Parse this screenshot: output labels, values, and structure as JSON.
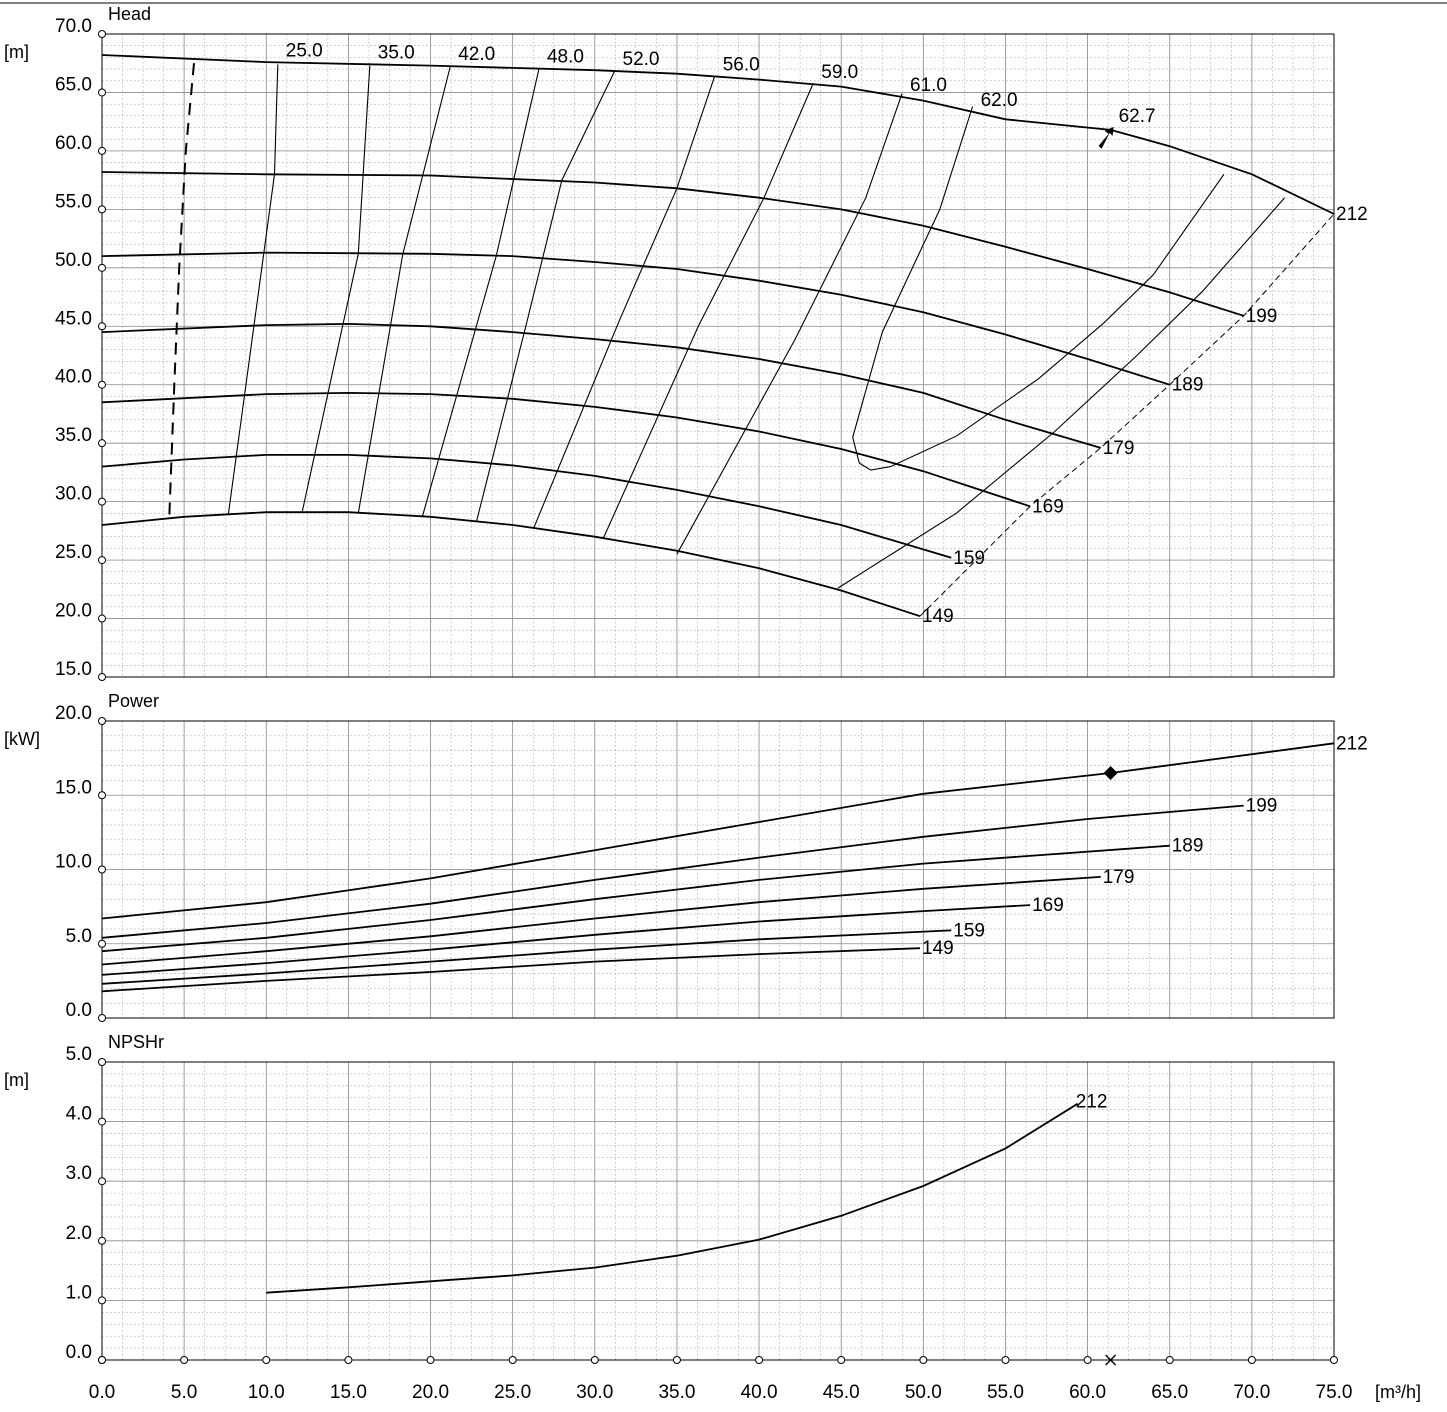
{
  "chart_data": [
    {
      "type": "line",
      "title": "Head",
      "ylabel": "[m]",
      "xlabel": "[m³/h]",
      "xlim": [
        0,
        75
      ],
      "ylim": [
        15,
        70
      ],
      "ytick_labels": [
        "15.0",
        "20.0",
        "25.0",
        "30.0",
        "35.0",
        "40.0",
        "45.0",
        "50.0",
        "55.0",
        "60.0",
        "65.0",
        "70.0"
      ],
      "grid": true,
      "series": [
        {
          "name": "212",
          "points": [
            [
              0,
              68.2
            ],
            [
              10,
              67.6
            ],
            [
              20,
              67.3
            ],
            [
              30,
              66.9
            ],
            [
              35,
              66.6
            ],
            [
              40,
              66.1
            ],
            [
              45,
              65.5
            ],
            [
              50,
              64.3
            ],
            [
              55,
              62.7
            ],
            [
              61.4,
              61.8
            ],
            [
              65,
              60.4
            ],
            [
              70,
              58.0
            ],
            [
              75,
              54.6
            ]
          ]
        },
        {
          "name": "199",
          "points": [
            [
              0,
              58.2
            ],
            [
              10,
              58.0
            ],
            [
              20,
              57.9
            ],
            [
              30,
              57.3
            ],
            [
              35,
              56.8
            ],
            [
              40,
              56.0
            ],
            [
              45,
              55.0
            ],
            [
              50,
              53.6
            ],
            [
              55,
              51.8
            ],
            [
              60,
              49.9
            ],
            [
              65,
              47.9
            ],
            [
              69.5,
              45.9
            ]
          ]
        },
        {
          "name": "189",
          "points": [
            [
              0,
              51.0
            ],
            [
              10,
              51.3
            ],
            [
              20,
              51.2
            ],
            [
              25,
              51.0
            ],
            [
              30,
              50.5
            ],
            [
              35,
              49.9
            ],
            [
              40,
              48.9
            ],
            [
              45,
              47.7
            ],
            [
              50,
              46.2
            ],
            [
              55,
              44.3
            ],
            [
              60,
              42.2
            ],
            [
              65,
              40.0
            ]
          ]
        },
        {
          "name": "179",
          "points": [
            [
              0,
              44.5
            ],
            [
              10,
              45.1
            ],
            [
              15,
              45.2
            ],
            [
              20,
              45.0
            ],
            [
              25,
              44.5
            ],
            [
              30,
              43.9
            ],
            [
              35,
              43.2
            ],
            [
              40,
              42.2
            ],
            [
              45,
              40.9
            ],
            [
              50,
              39.3
            ],
            [
              55,
              37.0
            ],
            [
              60.8,
              34.6
            ]
          ]
        },
        {
          "name": "169",
          "points": [
            [
              0,
              38.5
            ],
            [
              10,
              39.2
            ],
            [
              15,
              39.3
            ],
            [
              20,
              39.2
            ],
            [
              25,
              38.8
            ],
            [
              30,
              38.1
            ],
            [
              35,
              37.2
            ],
            [
              40,
              36.0
            ],
            [
              45,
              34.5
            ],
            [
              50,
              32.6
            ],
            [
              56.5,
              29.6
            ]
          ]
        },
        {
          "name": "159",
          "points": [
            [
              0,
              33.0
            ],
            [
              5,
              33.6
            ],
            [
              10,
              34.0
            ],
            [
              15,
              34.0
            ],
            [
              20,
              33.7
            ],
            [
              25,
              33.1
            ],
            [
              30,
              32.2
            ],
            [
              35,
              31.0
            ],
            [
              40,
              29.6
            ],
            [
              45,
              28.0
            ],
            [
              51.7,
              25.2
            ]
          ]
        },
        {
          "name": "149",
          "points": [
            [
              0,
              28.0
            ],
            [
              5,
              28.7
            ],
            [
              10,
              29.1
            ],
            [
              15,
              29.1
            ],
            [
              20,
              28.7
            ],
            [
              25,
              28.0
            ],
            [
              30,
              27.0
            ],
            [
              35,
              25.8
            ],
            [
              40,
              24.3
            ],
            [
              45,
              22.4
            ],
            [
              49.8,
              20.2
            ]
          ]
        }
      ],
      "efficiency_labels": [
        "25.0",
        "35.0",
        "42.0",
        "48.0",
        "52.0",
        "56.0",
        "59.0",
        "61.0",
        "62.0",
        "62.7"
      ],
      "efficiency_lines": [
        {
          "label": "25.0",
          "points": [
            [
              7.7,
              29.0
            ],
            [
              10.5,
              58.0
            ],
            [
              10.7,
              67.4
            ]
          ]
        },
        {
          "label": "35.0",
          "points": [
            [
              12.2,
              29.2
            ],
            [
              15.6,
              51.2
            ],
            [
              16.3,
              67.3
            ]
          ]
        },
        {
          "label": "42.0",
          "points": [
            [
              15.6,
              29.0
            ],
            [
              18.3,
              51.1
            ],
            [
              21.2,
              67.2
            ]
          ]
        },
        {
          "label": "48.0",
          "points": [
            [
              19.5,
              28.7
            ],
            [
              24.0,
              51.0
            ],
            [
              26.6,
              67.0
            ]
          ]
        },
        {
          "label": "52.0",
          "points": [
            [
              22.8,
              28.3
            ],
            [
              25.8,
              45.0
            ],
            [
              28.0,
              57.5
            ],
            [
              31.2,
              66.8
            ]
          ]
        },
        {
          "label": "56.0",
          "points": [
            [
              26.3,
              27.8
            ],
            [
              31.5,
              45.5
            ],
            [
              35.0,
              56.8
            ],
            [
              37.3,
              66.4
            ]
          ]
        },
        {
          "label": "59.0",
          "points": [
            [
              30.5,
              26.8
            ],
            [
              36.3,
              45.0
            ],
            [
              40.3,
              56.0
            ],
            [
              43.3,
              65.8
            ]
          ]
        },
        {
          "label": "61.0",
          "points": [
            [
              35.0,
              25.5
            ],
            [
              42.2,
              43.9
            ],
            [
              46.5,
              56.0
            ],
            [
              48.7,
              64.9
            ]
          ]
        },
        {
          "label": "62.0",
          "points": [
            [
              46.1,
              33.3
            ],
            [
              45.7,
              35.5
            ],
            [
              47.5,
              44.5
            ],
            [
              51.0,
              55.0
            ],
            [
              53.0,
              63.8
            ]
          ]
        }
      ],
      "efficiency_contour_62_0_lower": [
        [
          46.1,
          33.3
        ],
        [
          46.8,
          32.7
        ],
        [
          48.0,
          33.0
        ],
        [
          52.0,
          35.6
        ],
        [
          57.0,
          40.5
        ],
        [
          61.0,
          45.3
        ],
        [
          64.0,
          49.4
        ],
        [
          68.3,
          58.0
        ]
      ],
      "efficiency_contour_61_0_lower": [
        [
          44.8,
          22.6
        ],
        [
          52.0,
          29.0
        ],
        [
          58.0,
          36.0
        ],
        [
          63.0,
          42.5
        ],
        [
          67.0,
          48.0
        ],
        [
          72.0,
          56.0
        ]
      ],
      "npsh_limit_line": [
        [
          5.6,
          67.5
        ],
        [
          5.1,
          60.0
        ],
        [
          4.7,
          50.0
        ],
        [
          4.4,
          40.0
        ],
        [
          4.1,
          28.7
        ]
      ],
      "end_of_curve_line": [
        [
          49.8,
          20.2
        ],
        [
          56.5,
          29.6
        ],
        [
          60.8,
          34.6
        ],
        [
          65,
          40.0
        ],
        [
          69.5,
          45.9
        ],
        [
          75,
          54.6
        ]
      ],
      "best_efficiency_label": "62.7",
      "duty_point": [
        61.4,
        61.8
      ]
    },
    {
      "type": "line",
      "title": "Power",
      "ylabel": "[kW]",
      "xlabel": "[m³/h]",
      "xlim": [
        0,
        75
      ],
      "ylim": [
        0,
        20
      ],
      "ytick_labels": [
        "0.0",
        "5.0",
        "10.0",
        "15.0",
        "20.0"
      ],
      "grid": true,
      "series": [
        {
          "name": "212",
          "points": [
            [
              0,
              6.7
            ],
            [
              10,
              7.8
            ],
            [
              20,
              9.4
            ],
            [
              30,
              11.3
            ],
            [
              40,
              13.2
            ],
            [
              50,
              15.1
            ],
            [
              61.4,
              16.5
            ],
            [
              75,
              18.5
            ]
          ]
        },
        {
          "name": "199",
          "points": [
            [
              0,
              5.4
            ],
            [
              10,
              6.4
            ],
            [
              20,
              7.7
            ],
            [
              30,
              9.3
            ],
            [
              40,
              10.8
            ],
            [
              50,
              12.2
            ],
            [
              60,
              13.4
            ],
            [
              69.5,
              14.3
            ]
          ]
        },
        {
          "name": "189",
          "points": [
            [
              0,
              4.5
            ],
            [
              10,
              5.4
            ],
            [
              20,
              6.6
            ],
            [
              30,
              8.0
            ],
            [
              40,
              9.3
            ],
            [
              50,
              10.4
            ],
            [
              65,
              11.6
            ]
          ]
        },
        {
          "name": "179",
          "points": [
            [
              0,
              3.6
            ],
            [
              10,
              4.5
            ],
            [
              20,
              5.5
            ],
            [
              30,
              6.7
            ],
            [
              40,
              7.8
            ],
            [
              50,
              8.7
            ],
            [
              60.8,
              9.5
            ]
          ]
        },
        {
          "name": "169",
          "points": [
            [
              0,
              2.9
            ],
            [
              10,
              3.7
            ],
            [
              20,
              4.6
            ],
            [
              30,
              5.6
            ],
            [
              40,
              6.5
            ],
            [
              50,
              7.2
            ],
            [
              56.5,
              7.6
            ]
          ]
        },
        {
          "name": "159",
          "points": [
            [
              0,
              2.3
            ],
            [
              10,
              3.0
            ],
            [
              20,
              3.8
            ],
            [
              30,
              4.6
            ],
            [
              40,
              5.3
            ],
            [
              51.7,
              5.9
            ]
          ]
        },
        {
          "name": "149",
          "points": [
            [
              0,
              1.8
            ],
            [
              10,
              2.5
            ],
            [
              20,
              3.1
            ],
            [
              30,
              3.8
            ],
            [
              40,
              4.3
            ],
            [
              49.8,
              4.7
            ]
          ]
        }
      ],
      "duty_point": [
        61.4,
        16.5
      ]
    },
    {
      "type": "line",
      "title": "NPSHr",
      "ylabel": "[m]",
      "xlabel": "[m³/h]",
      "xlim": [
        0,
        75
      ],
      "ylim": [
        0,
        5
      ],
      "ytick_labels": [
        "0.0",
        "1.0",
        "2.0",
        "3.0",
        "4.0",
        "5.0"
      ],
      "xtick_labels": [
        "0.0",
        "5.0",
        "10.0",
        "15.0",
        "20.0",
        "25.0",
        "30.0",
        "35.0",
        "40.0",
        "45.0",
        "50.0",
        "55.0",
        "60.0",
        "65.0",
        "70.0",
        "75.0"
      ],
      "grid": true,
      "series": [
        {
          "name": "212",
          "points": [
            [
              10,
              1.13
            ],
            [
              15,
              1.22
            ],
            [
              20,
              1.32
            ],
            [
              25,
              1.42
            ],
            [
              30,
              1.55
            ],
            [
              35,
              1.75
            ],
            [
              40,
              2.02
            ],
            [
              45,
              2.42
            ],
            [
              50,
              2.92
            ],
            [
              55,
              3.55
            ],
            [
              59.4,
              4.3
            ]
          ]
        }
      ],
      "duty_marker_x": 61.4
    }
  ]
}
